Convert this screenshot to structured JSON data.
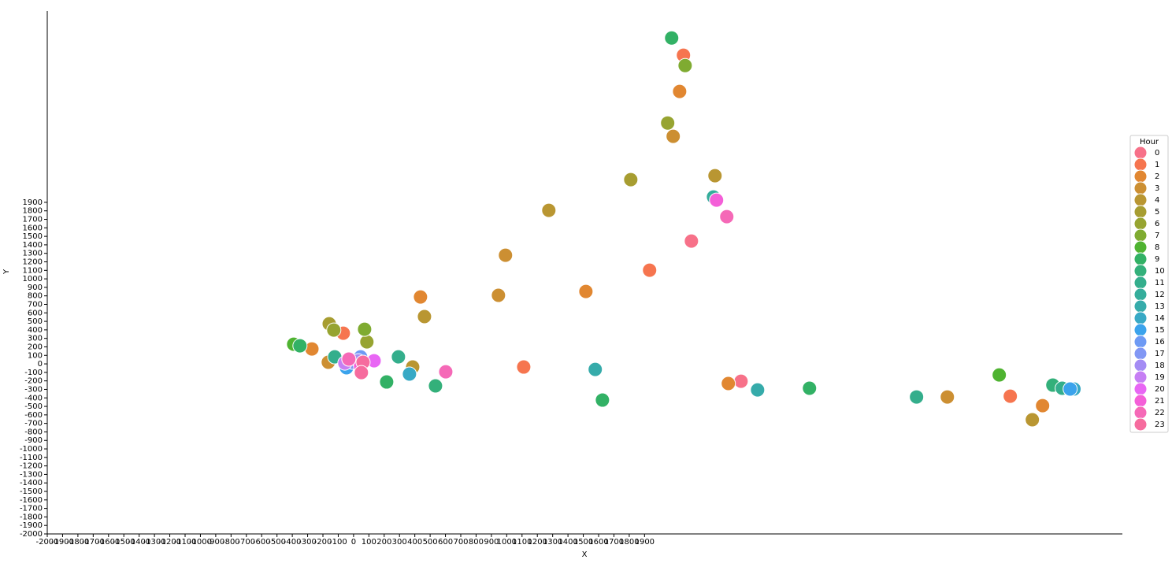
{
  "chart_data": {
    "type": "scatter",
    "x_label": "X",
    "y_label": "Y",
    "legend_title": "Hour",
    "legend": "right",
    "xlim": [
      -2000,
      5020
    ],
    "ylim": [
      -2000,
      4150
    ],
    "xticks": [
      -2000,
      -1900,
      -1800,
      -1700,
      -1600,
      -1500,
      -1400,
      -1300,
      -1200,
      -1100,
      -1000,
      -900,
      -800,
      -700,
      -600,
      -500,
      -400,
      -300,
      -200,
      -100,
      0,
      100,
      200,
      300,
      400,
      500,
      600,
      700,
      800,
      900,
      1000,
      1100,
      1200,
      1300,
      1400,
      1500,
      1600,
      1700,
      1800,
      1900
    ],
    "yticks": [
      -2000,
      -1900,
      -1800,
      -1700,
      -1600,
      -1500,
      -1400,
      -1300,
      -1200,
      -1100,
      -1000,
      -900,
      -800,
      -700,
      -600,
      -500,
      -400,
      -300,
      -200,
      -100,
      0,
      100,
      200,
      300,
      400,
      500,
      600,
      700,
      800,
      900,
      1000,
      1100,
      1200,
      1300,
      1400,
      1500,
      1600,
      1700,
      1800,
      1900
    ],
    "series": [
      {
        "name": "0",
        "color": "#f77189",
        "x": [
          2206,
          2530
        ],
        "values": [
          1444,
          -204
        ]
      },
      {
        "name": "1",
        "color": "#f6754f",
        "x": [
          2154,
          1933,
          1111,
          4288,
          -67
        ],
        "values": [
          3630,
          1102,
          -37,
          -380,
          361
        ]
      },
      {
        "name": "2",
        "color": "#e18731",
        "x": [
          2129,
          1517,
          437,
          2447,
          4499,
          -272
        ],
        "values": [
          3204,
          852,
          787,
          -231,
          -491,
          176
        ]
      },
      {
        "name": "3",
        "color": "#cc8f32",
        "x": [
          2087,
          992,
          946,
          3877,
          -165
        ],
        "values": [
          2676,
          1278,
          806,
          -389,
          19
        ]
      },
      {
        "name": "4",
        "color": "#b99632",
        "x": [
          2360,
          1275,
          463,
          4432,
          386
        ],
        "values": [
          2213,
          1806,
          556,
          -657,
          -37
        ]
      },
      {
        "name": "5",
        "color": "#a79d31",
        "x": [
          1810,
          -159
        ],
        "values": [
          2167,
          472
        ]
      },
      {
        "name": "6",
        "color": "#97a431",
        "x": [
          2051,
          -129,
          87
        ],
        "values": [
          2833,
          398,
          259
        ]
      },
      {
        "name": "7",
        "color": "#7fab31",
        "x": [
          2165,
          72
        ],
        "values": [
          3509,
          407
        ]
      },
      {
        "name": "8",
        "color": "#4fb331",
        "x": [
          4216,
          -391
        ],
        "values": [
          -130,
          231
        ]
      },
      {
        "name": "9",
        "color": "#32b165",
        "x": [
          2077,
          2977,
          1625,
          -350,
          216
        ],
        "values": [
          3833,
          -287,
          -426,
          213,
          -213
        ]
      },
      {
        "name": "10",
        "color": "#33b07a",
        "x": [
          4566,
          535
        ],
        "values": [
          -250,
          -259
        ]
      },
      {
        "name": "11",
        "color": "#34ae8c",
        "x": [
          4627,
          3676,
          293,
          -123
        ],
        "values": [
          -287,
          -389,
          83,
          83
        ]
      },
      {
        "name": "12",
        "color": "#35ad9b",
        "x": [
          2350
        ],
        "values": [
          1963
        ]
      },
      {
        "name": "13",
        "color": "#36abaa",
        "x": [
          2638,
          1578
        ],
        "values": [
          -306,
          -65
        ]
      },
      {
        "name": "14",
        "color": "#38a9c5",
        "x": [
          4704,
          365
        ],
        "values": [
          -296,
          -120
        ]
      },
      {
        "name": "15",
        "color": "#3ba3ec",
        "x": [
          4679,
          -46
        ],
        "values": [
          -296,
          -46
        ]
      },
      {
        "name": "16",
        "color": "#6e9af4",
        "x": [
          46
        ],
        "values": [
          83
        ]
      },
      {
        "name": "17",
        "color": "#8197f4",
        "x": [
          -5
        ],
        "values": [
          19
        ]
      },
      {
        "name": "18",
        "color": "#a48cf4",
        "x": [
          31
        ],
        "values": [
          37
        ]
      },
      {
        "name": "19",
        "color": "#c67ff4",
        "x": [
          -57
        ],
        "values": [
          9
        ]
      },
      {
        "name": "20",
        "color": "#e866f4",
        "x": [
          134
        ],
        "values": [
          37
        ]
      },
      {
        "name": "21",
        "color": "#f45fd8",
        "x": [
          2370,
          46
        ],
        "values": [
          1926,
          -28
        ]
      },
      {
        "name": "22",
        "color": "#f569b7",
        "x": [
          2437,
          602,
          -31
        ],
        "values": [
          1731,
          -93,
          56
        ]
      },
      {
        "name": "23",
        "color": "#f66c9e",
        "x": [
          62,
          51
        ],
        "values": [
          19,
          -102
        ]
      }
    ]
  }
}
